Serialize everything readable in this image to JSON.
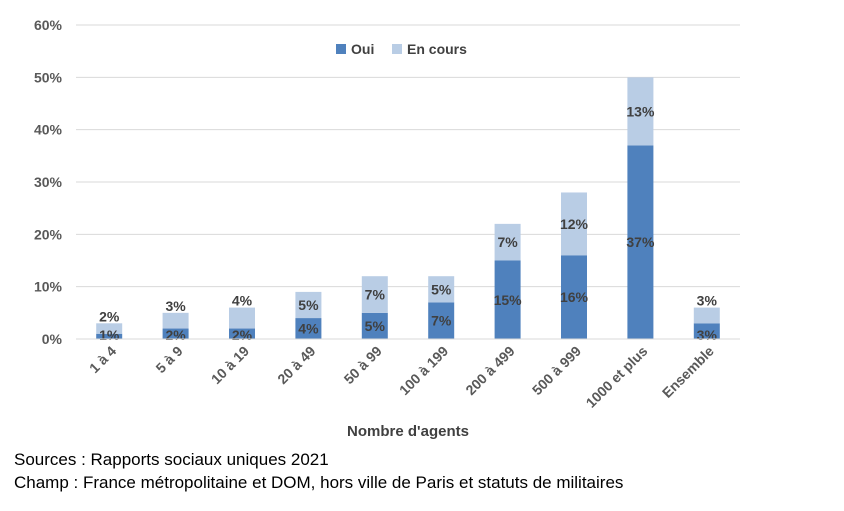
{
  "chart_data": {
    "type": "bar",
    "stacked": true,
    "categories": [
      "1 à 4",
      "5 à 9",
      "10 à 19",
      "20 à 49",
      "50 à 99",
      "100 à 199",
      "200 à 499",
      "500 à 999",
      "1000 et plus",
      "Ensemble"
    ],
    "series": [
      {
        "name": "Oui",
        "values": [
          1,
          2,
          2,
          4,
          5,
          7,
          15,
          16,
          37,
          3
        ],
        "labels": [
          "1%",
          "2%",
          "2%",
          "4%",
          "5%",
          "7%",
          "15%",
          "16%",
          "37%",
          "3%"
        ],
        "color": "#4f81bd"
      },
      {
        "name": "En cours",
        "values": [
          2,
          3,
          4,
          5,
          7,
          5,
          7,
          12,
          13,
          3
        ],
        "labels": [
          "2%",
          "3%",
          "4%",
          "5%",
          "7%",
          "5%",
          "7%",
          "12%",
          "13%",
          "3%"
        ],
        "color": "#b9cde5"
      }
    ],
    "yticks": [
      "0%",
      "10%",
      "20%",
      "30%",
      "40%",
      "50%",
      "60%"
    ],
    "ylim": [
      0,
      60
    ],
    "xlabel": "Nombre d'agents",
    "ylabel": "",
    "grid": true,
    "legend": "top-center"
  },
  "notes": {
    "sources": "Sources : Rapports sociaux uniques 2021",
    "champ": "Champ : France métropolitaine et DOM, hors ville de Paris et statuts de militaires"
  }
}
